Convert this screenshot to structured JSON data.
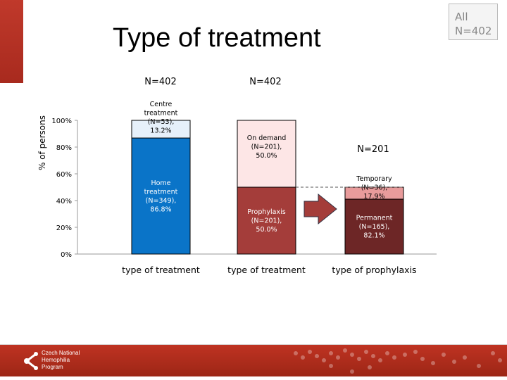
{
  "title": "Type of treatment",
  "all_box": {
    "line1": "All",
    "line2": "N=402"
  },
  "logo": {
    "text": "Czech National\nHemophilia\nProgram"
  },
  "chart_data": {
    "type": "bar",
    "stacked": true,
    "ylabel": "% of persons",
    "ylim": [
      0,
      100
    ],
    "yticks": [
      "0%",
      "20%",
      "40%",
      "60%",
      "80%",
      "100%"
    ],
    "categories": [
      "type of treatment",
      "type of treatment",
      "type of prophylaxis"
    ],
    "group_n": [
      "N=402",
      "N=402",
      "N=201"
    ],
    "bars": [
      {
        "segments": [
          {
            "label": [
              "Home",
              "treatment",
              "(N=349),",
              "86.8%"
            ],
            "value": 86.8,
            "color": "#0a74c8",
            "text_color": "#ffffff"
          },
          {
            "label": [
              "Centre",
              "treatment",
              "(N=53),",
              "13.2%"
            ],
            "value": 13.2,
            "color": "#e6f0fa",
            "text_color": "#000000"
          }
        ]
      },
      {
        "segments": [
          {
            "label": [
              "Prophylaxis",
              "(N=201),",
              "50.0%"
            ],
            "value": 50.0,
            "color": "#a43d3a",
            "text_color": "#ffffff"
          },
          {
            "label": [
              "On demand",
              "(N=201),",
              "50.0%"
            ],
            "value": 50.0,
            "color": "#fde6e6",
            "text_color": "#000000"
          }
        ]
      },
      {
        "scale_of_total": 50.0,
        "segments": [
          {
            "label": [
              "Permanent",
              "(N=165),",
              "82.1%"
            ],
            "value": 82.1,
            "color": "#6d2626",
            "text_color": "#ffffff"
          },
          {
            "label": [
              "Temporary",
              "(N=36),",
              "17.9%"
            ],
            "value": 17.9,
            "color": "#e89b9b",
            "text_color": "#000000"
          }
        ]
      }
    ],
    "grid": false,
    "arrow_color": "#a43d3a"
  }
}
